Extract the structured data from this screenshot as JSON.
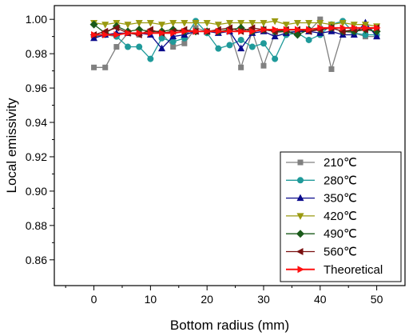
{
  "chart_data": {
    "type": "line",
    "title": "",
    "xlabel": "Bottom radius (mm)",
    "ylabel": "Local emissivity",
    "xlim": [
      -7,
      55
    ],
    "ylim": [
      0.845,
      1.008
    ],
    "x_ticks": [
      "0",
      "10",
      "20",
      "30",
      "40",
      "50"
    ],
    "y_ticks": [
      "0.86",
      "0.88",
      "0.90",
      "0.92",
      "0.94",
      "0.96",
      "0.98",
      "1.00"
    ],
    "legend_position": "bottom-right",
    "grid": false,
    "series": [
      {
        "name": "210℃",
        "color": "#808080",
        "marker": "square",
        "x": [
          0,
          2,
          4,
          6,
          8,
          10,
          12,
          14,
          16,
          18,
          20,
          22,
          24,
          26,
          28,
          30,
          32,
          34,
          36,
          38,
          40,
          42,
          44,
          46,
          48,
          50
        ],
        "y": [
          0.972,
          0.972,
          0.984,
          0.992,
          0.991,
          0.993,
          0.992,
          0.984,
          0.986,
          0.995,
          0.993,
          0.993,
          0.993,
          0.972,
          0.993,
          0.973,
          0.992,
          0.993,
          0.993,
          0.993,
          1.0,
          0.971,
          0.993,
          0.992,
          0.99,
          0.99
        ]
      },
      {
        "name": "280℃",
        "color": "#1f9a9a",
        "marker": "circle",
        "x": [
          0,
          2,
          4,
          6,
          8,
          10,
          12,
          14,
          16,
          18,
          20,
          22,
          24,
          26,
          28,
          30,
          32,
          34,
          36,
          38,
          40,
          42,
          44,
          46,
          48,
          50
        ],
        "y": [
          0.99,
          0.991,
          0.99,
          0.984,
          0.984,
          0.977,
          0.989,
          0.987,
          0.989,
          0.999,
          0.992,
          0.983,
          0.985,
          0.988,
          0.984,
          0.986,
          0.977,
          0.991,
          0.992,
          0.988,
          0.991,
          0.997,
          0.999,
          0.992,
          0.991,
          0.991
        ]
      },
      {
        "name": "350℃",
        "color": "#0a0a8c",
        "marker": "triangle-up",
        "x": [
          0,
          2,
          4,
          6,
          8,
          10,
          12,
          14,
          16,
          18,
          20,
          22,
          24,
          26,
          28,
          30,
          32,
          34,
          36,
          38,
          40,
          42,
          44,
          46,
          48,
          50
        ],
        "y": [
          0.989,
          0.991,
          0.992,
          0.992,
          0.992,
          0.991,
          0.983,
          0.99,
          0.991,
          0.993,
          0.993,
          0.992,
          0.993,
          0.983,
          0.992,
          0.993,
          0.99,
          0.992,
          0.993,
          0.993,
          0.992,
          0.993,
          0.991,
          0.991,
          0.998,
          0.99
        ]
      },
      {
        "name": "420℃",
        "color": "#9a9a10",
        "marker": "triangle-down",
        "x": [
          0,
          2,
          4,
          6,
          8,
          10,
          12,
          14,
          16,
          18,
          20,
          22,
          24,
          26,
          28,
          30,
          32,
          34,
          36,
          38,
          40,
          42,
          44,
          46,
          48,
          50
        ],
        "y": [
          0.998,
          0.997,
          0.998,
          0.997,
          0.998,
          0.998,
          0.997,
          0.998,
          0.998,
          0.998,
          0.998,
          0.997,
          0.998,
          0.998,
          0.998,
          0.998,
          0.999,
          0.997,
          0.998,
          0.998,
          0.998,
          0.997,
          0.998,
          0.997,
          0.997,
          0.996
        ]
      },
      {
        "name": "490℃",
        "color": "#1a5a1a",
        "marker": "diamond",
        "x": [
          0,
          2,
          4,
          6,
          8,
          10,
          12,
          14,
          16,
          18,
          20,
          22,
          24,
          26,
          28,
          30,
          32,
          34,
          36,
          38,
          40,
          42,
          44,
          46,
          48,
          50
        ],
        "y": [
          0.997,
          0.992,
          0.996,
          0.993,
          0.994,
          0.993,
          0.993,
          0.994,
          0.993,
          0.993,
          0.993,
          0.993,
          0.994,
          0.995,
          0.993,
          0.994,
          0.993,
          0.993,
          0.991,
          0.994,
          0.994,
          0.995,
          0.993,
          0.993,
          0.994,
          0.993
        ]
      },
      {
        "name": "560℃",
        "color": "#7a1010",
        "marker": "triangle-left",
        "x": [
          0,
          2,
          4,
          6,
          8,
          10,
          12,
          14,
          16,
          18,
          20,
          22,
          24,
          26,
          28,
          30,
          32,
          34,
          36,
          38,
          40,
          42,
          44,
          46,
          48,
          50
        ],
        "y": [
          0.991,
          0.993,
          0.995,
          0.992,
          0.991,
          0.994,
          0.992,
          0.993,
          0.994,
          0.993,
          0.993,
          0.994,
          0.995,
          0.993,
          0.995,
          0.994,
          0.993,
          0.994,
          0.994,
          0.993,
          0.994,
          0.995,
          0.993,
          0.994,
          0.994,
          0.995
        ]
      },
      {
        "name": "Theoretical",
        "color": "#ff1010",
        "marker": "triangle-right",
        "x": [
          0,
          2,
          4,
          6,
          8,
          10,
          12,
          14,
          16,
          18,
          20,
          22,
          24,
          26,
          28,
          30,
          32,
          34,
          36,
          38,
          40,
          42,
          44,
          46,
          48,
          50
        ],
        "y": [
          0.991,
          0.991,
          0.991,
          0.992,
          0.992,
          0.992,
          0.992,
          0.992,
          0.993,
          0.993,
          0.993,
          0.993,
          0.993,
          0.993,
          0.993,
          0.994,
          0.994,
          0.994,
          0.994,
          0.994,
          0.995,
          0.995,
          0.995,
          0.995,
          0.995,
          0.995
        ]
      }
    ]
  }
}
